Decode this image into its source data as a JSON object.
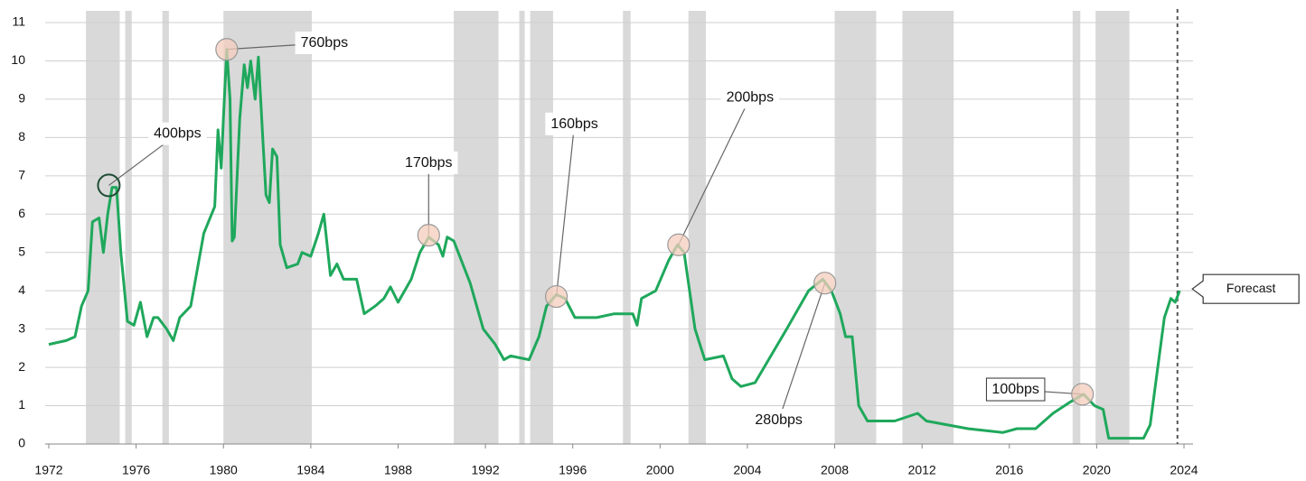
{
  "chart_data": {
    "type": "line",
    "color": "#1fa85c",
    "shade_color": "#d9d9d9",
    "xlim": [
      1972,
      2024
    ],
    "xticks": [
      1972,
      1976,
      1980,
      1984,
      1988,
      1992,
      1996,
      2000,
      2004,
      2008,
      2012,
      2016,
      2020,
      2024
    ],
    "ylim": [
      0,
      11
    ],
    "yticks": [
      0,
      1,
      2,
      3,
      4,
      5,
      6,
      7,
      8,
      9,
      10,
      11
    ],
    "grid": true,
    "shaded_ranges": [
      [
        1973.7,
        1975.25
      ],
      [
        1975.5,
        1975.8
      ],
      [
        1977.2,
        1977.5
      ],
      [
        1980.0,
        1984.05
      ],
      [
        1990.55,
        1992.6
      ],
      [
        1993.55,
        1993.8
      ],
      [
        1994.05,
        1995.1
      ],
      [
        1998.3,
        1998.65
      ],
      [
        2001.3,
        2002.1
      ],
      [
        2008.0,
        2009.9
      ],
      [
        2011.1,
        2013.45
      ],
      [
        2018.9,
        2019.25
      ],
      [
        2019.95,
        2021.5
      ]
    ],
    "forecast_start": 2023.7,
    "forecast_label": "Forecast",
    "x": [
      1972.0,
      1972.8,
      1973.2,
      1973.5,
      1973.8,
      1974.0,
      1974.3,
      1974.5,
      1974.7,
      1974.9,
      1975.1,
      1975.3,
      1975.6,
      1975.9,
      1976.2,
      1976.5,
      1976.8,
      1977.0,
      1977.4,
      1977.7,
      1978.0,
      1978.5,
      1979.1,
      1979.6,
      1979.75,
      1979.9,
      1980.0,
      1980.15,
      1980.3,
      1980.4,
      1980.5,
      1980.75,
      1980.95,
      1981.1,
      1981.25,
      1981.45,
      1981.6,
      1981.8,
      1981.95,
      1982.1,
      1982.25,
      1982.45,
      1982.6,
      1982.9,
      1983.4,
      1983.6,
      1984.0,
      1984.35,
      1984.6,
      1984.9,
      1985.2,
      1985.5,
      1986.1,
      1986.45,
      1986.95,
      1987.35,
      1987.65,
      1988.0,
      1988.6,
      1989.0,
      1989.4,
      1989.85,
      1990.05,
      1990.25,
      1990.55,
      1991.3,
      1991.9,
      1992.45,
      1992.85,
      1993.15,
      1994.0,
      1994.45,
      1994.8,
      1995.25,
      1995.65,
      1996.1,
      1997.1,
      1997.9,
      1998.75,
      1998.95,
      1999.15,
      1999.8,
      2000.4,
      2000.8,
      2001.1,
      2001.6,
      2002.05,
      2002.9,
      2003.3,
      2003.7,
      2004.35,
      2005.8,
      2006.8,
      2007.45,
      2007.85,
      2008.25,
      2008.5,
      2008.8,
      2009.1,
      2009.5,
      2010.75,
      2011.8,
      2012.2,
      2014.1,
      2015.7,
      2016.35,
      2017.2,
      2018.0,
      2018.8,
      2019.4,
      2019.9,
      2020.3,
      2020.55,
      2022.15,
      2022.45,
      2022.8,
      2023.1,
      2023.4,
      2023.6,
      2023.8
    ],
    "values": [
      2.6,
      2.7,
      2.8,
      3.6,
      4.0,
      5.8,
      5.9,
      5.0,
      6.0,
      6.7,
      6.7,
      5.0,
      3.2,
      3.1,
      3.7,
      2.8,
      3.3,
      3.3,
      3.0,
      2.7,
      3.3,
      3.6,
      5.5,
      6.2,
      8.2,
      7.2,
      8.5,
      10.3,
      9.0,
      5.3,
      5.4,
      8.5,
      9.9,
      9.3,
      10.0,
      9.0,
      10.1,
      8.0,
      6.5,
      6.3,
      7.7,
      7.5,
      5.2,
      4.6,
      4.7,
      5.0,
      4.9,
      5.5,
      6.0,
      4.4,
      4.7,
      4.3,
      4.3,
      3.4,
      3.6,
      3.8,
      4.1,
      3.7,
      4.3,
      5.0,
      5.4,
      5.2,
      4.9,
      5.4,
      5.3,
      4.2,
      3.0,
      2.6,
      2.2,
      2.3,
      2.2,
      2.8,
      3.6,
      3.9,
      3.8,
      3.3,
      3.3,
      3.4,
      3.4,
      3.1,
      3.8,
      4.0,
      4.8,
      5.2,
      5.0,
      3.0,
      2.2,
      2.3,
      1.7,
      1.5,
      1.6,
      3.0,
      4.0,
      4.3,
      4.0,
      3.4,
      2.8,
      2.8,
      1.0,
      0.6,
      0.6,
      0.8,
      0.6,
      0.4,
      0.3,
      0.4,
      0.4,
      0.8,
      1.1,
      1.3,
      1.0,
      0.9,
      0.15,
      0.15,
      0.5,
      2.0,
      3.3,
      3.8,
      3.7,
      4.0
    ],
    "annotations": [
      {
        "text": "400bps",
        "x": 1974.75,
        "y": 6.75
      },
      {
        "text": "760bps",
        "x": 1980.15,
        "y": 10.3
      },
      {
        "text": "170bps",
        "x": 1989.4,
        "y": 5.45
      },
      {
        "text": "160bps",
        "x": 1995.25,
        "y": 3.85
      },
      {
        "text": "200bps",
        "x": 2000.85,
        "y": 5.2
      },
      {
        "text": "280bps",
        "x": 2007.55,
        "y": 4.2
      },
      {
        "text": "100bps",
        "x": 2019.35,
        "y": 1.3
      }
    ]
  }
}
